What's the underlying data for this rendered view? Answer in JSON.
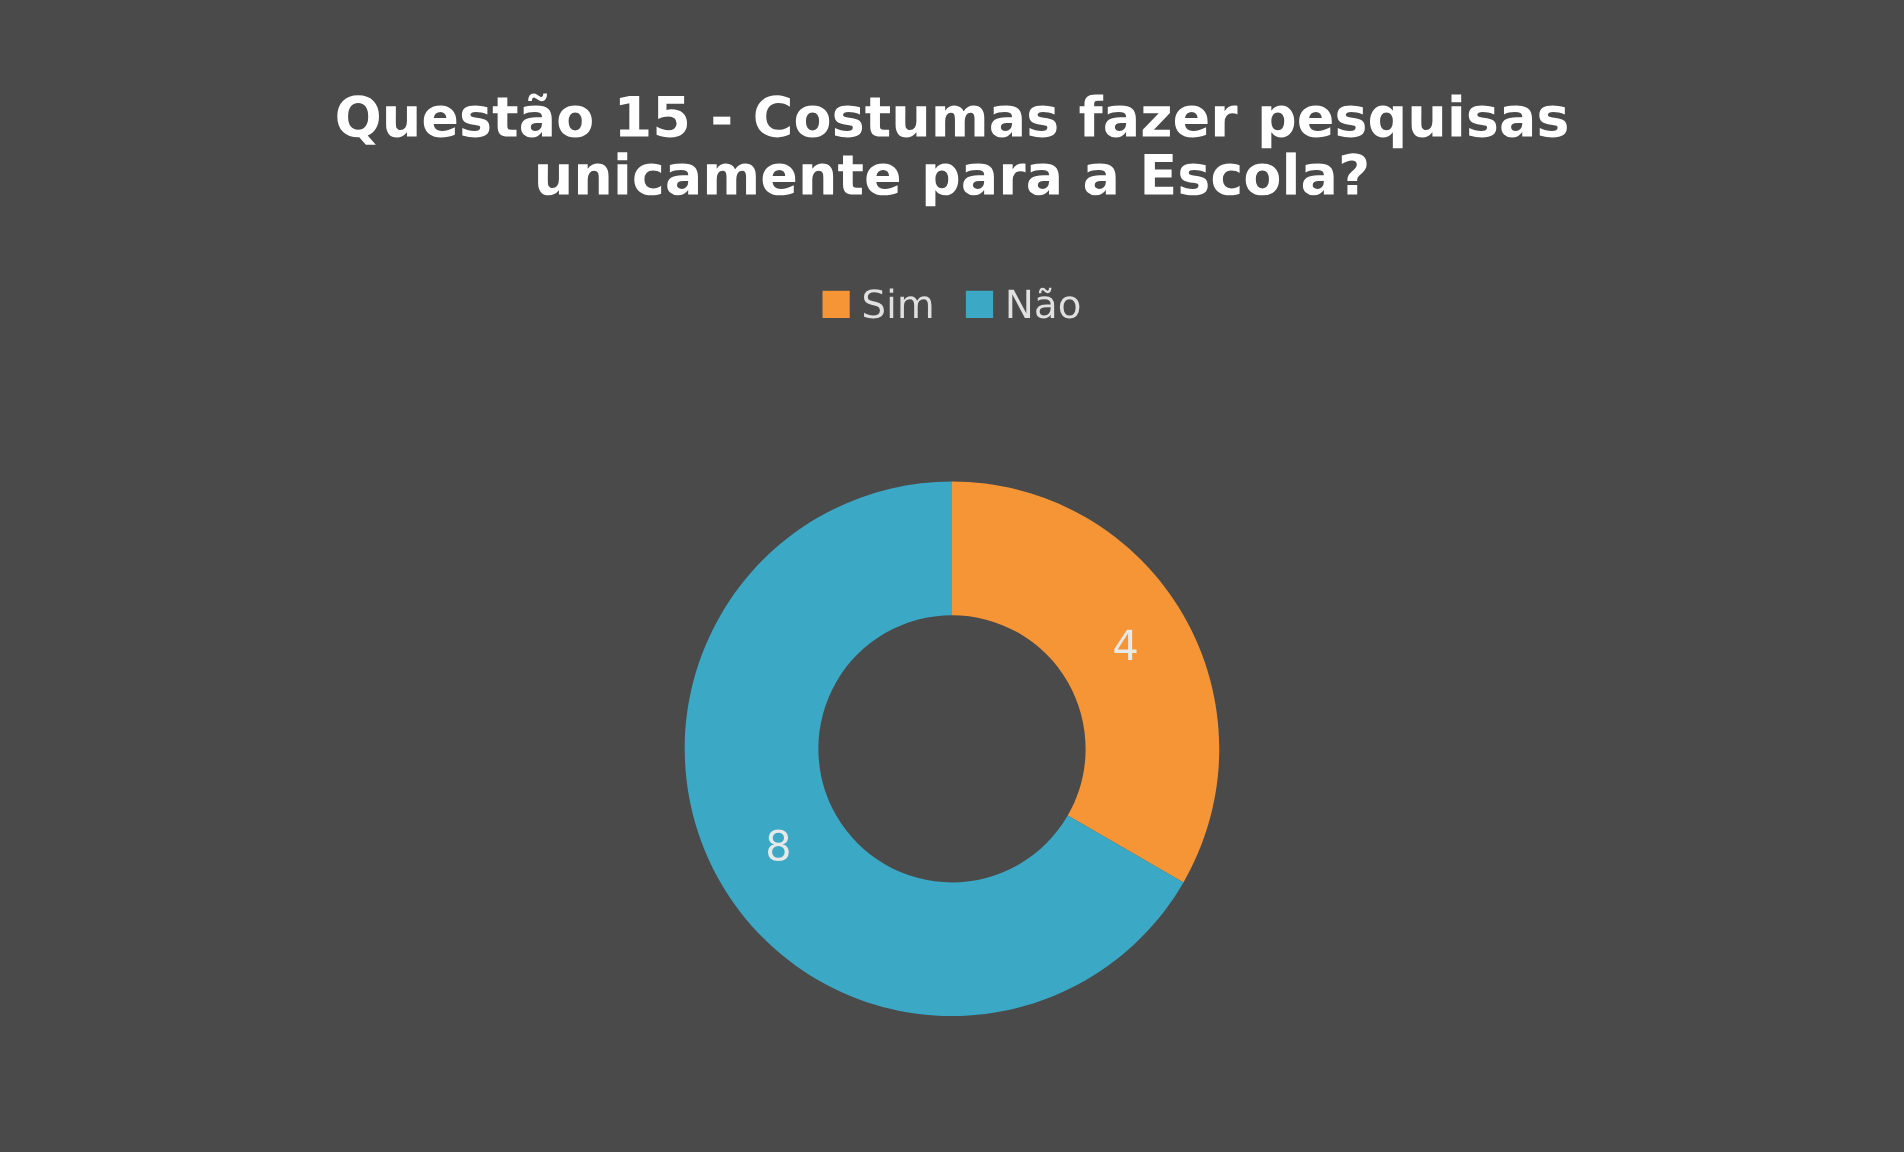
{
  "chart_data": {
    "type": "donut",
    "title": "Questão 15 - Costumas fazer pesquisas\nunicamente para a Escola?",
    "categories": [
      "Sim",
      "Não"
    ],
    "values": [
      4,
      8
    ],
    "colors": [
      "#f59535",
      "#3ba9c6"
    ],
    "data_labels": true,
    "legend": "top"
  }
}
